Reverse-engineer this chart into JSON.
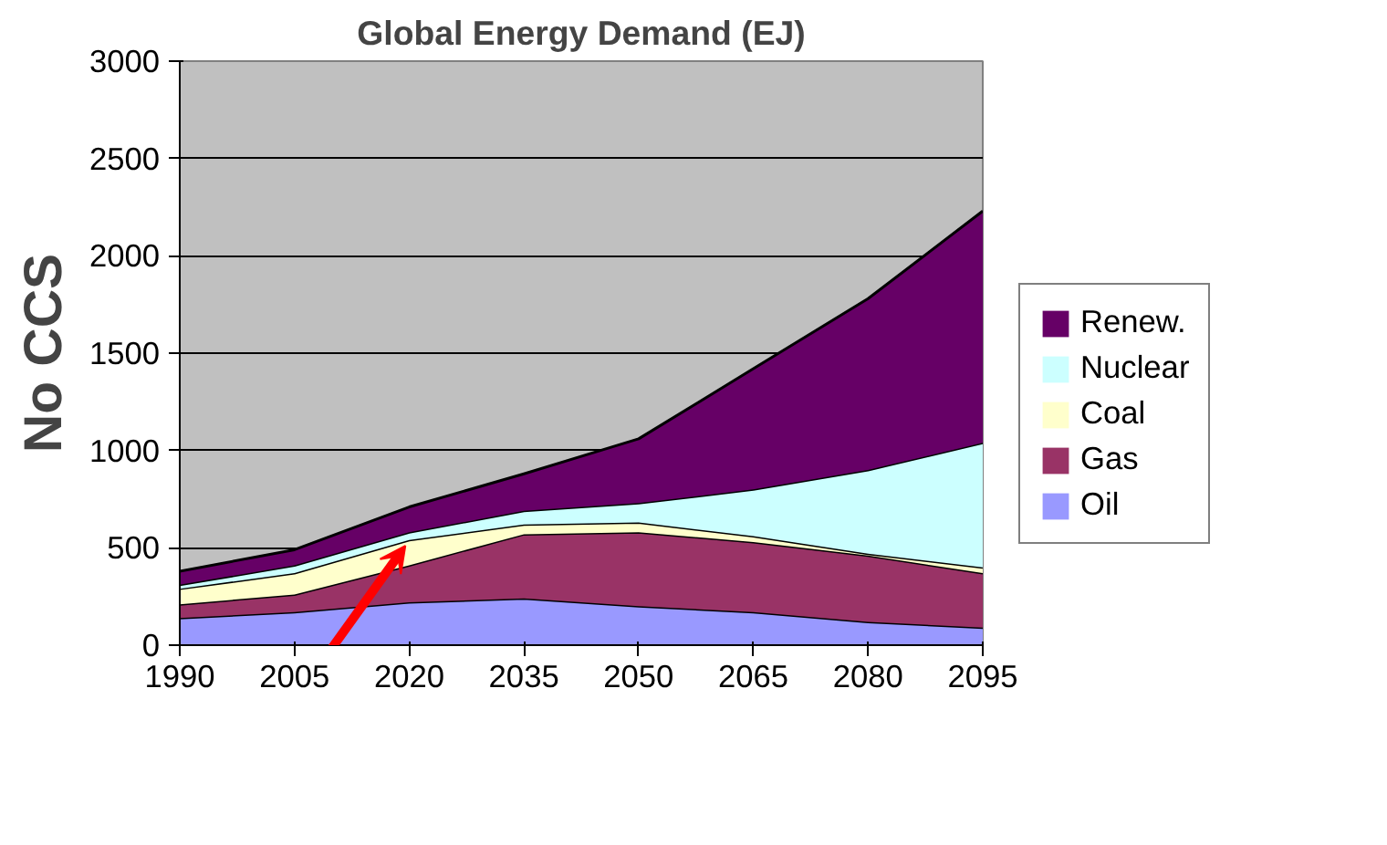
{
  "chart_data": {
    "type": "area",
    "stacked": true,
    "title": "Global Energy Demand (EJ)",
    "annotations": [
      "No CCS"
    ],
    "x": [
      1990,
      2005,
      2020,
      2035,
      2050,
      2065,
      2080,
      2095
    ],
    "xlim": [
      1990,
      2095
    ],
    "xticks": [
      1990,
      2005,
      2020,
      2035,
      2050,
      2065,
      2080,
      2095
    ],
    "ylim": [
      0,
      3000
    ],
    "yticks": [
      0,
      500,
      1000,
      1500,
      2000,
      2500,
      3000
    ],
    "grid": "y",
    "legend": "right",
    "series": [
      {
        "name": "Oil",
        "color": "#9999ff",
        "values": [
          140,
          170,
          220,
          240,
          200,
          170,
          120,
          90
        ]
      },
      {
        "name": "Gas",
        "color": "#993366",
        "values": [
          70,
          90,
          190,
          330,
          380,
          360,
          340,
          280
        ]
      },
      {
        "name": "Coal",
        "color": "#ffffcc",
        "values": [
          80,
          110,
          130,
          50,
          50,
          30,
          10,
          30
        ]
      },
      {
        "name": "Nuclear",
        "color": "#ccffff",
        "values": [
          20,
          40,
          40,
          70,
          100,
          240,
          430,
          640
        ]
      },
      {
        "name": "Renew.",
        "color": "#660066",
        "values": [
          70,
          80,
          130,
          190,
          330,
          620,
          880,
          1190
        ]
      }
    ]
  }
}
